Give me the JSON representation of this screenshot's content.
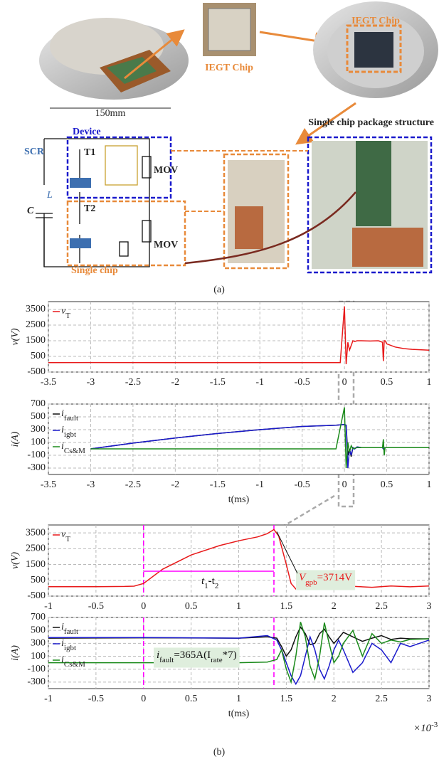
{
  "panel_a": {
    "scale": "150mm",
    "chip_label_1": "IEGT Chip",
    "chip_label_2": "IEGT Chip",
    "package": "Single chip package structure",
    "device": "Device",
    "scr": "SCR",
    "t1": "T1",
    "t2": "T2",
    "mov_1": "MOV",
    "mov_2": "MOV",
    "inductor": "L",
    "capacitor": "C",
    "single_chip": "Single chip",
    "caption": "(a)"
  },
  "panel_b": {
    "caption": "(b)"
  },
  "chart_data": [
    {
      "type": "line",
      "ylabel": "v(V)",
      "x": [
        -3.5,
        -3,
        -2,
        -1,
        -0.5,
        -0.05,
        0,
        0.02,
        0.04,
        0.06,
        0.08,
        0.1,
        0.12,
        0.15,
        0.2,
        0.3,
        0.4,
        0.45,
        0.46,
        0.47,
        0.48,
        0.5,
        0.6,
        0.7,
        0.8,
        1
      ],
      "series": [
        {
          "name": "v",
          "subscript": "T",
          "color": "#e8191a",
          "values": [
            100,
            110,
            100,
            100,
            100,
            100,
            3700,
            0,
            1400,
            900,
            1200,
            1500,
            1450,
            1500,
            1500,
            1480,
            1500,
            1400,
            200,
            1500,
            1500,
            1300,
            1100,
            1000,
            950,
            900
          ]
        }
      ],
      "xlim": [
        -3.5,
        1
      ],
      "xticks": [
        -3.5,
        -3,
        -2.5,
        -2,
        -1.5,
        -1,
        -0.5,
        0,
        0.5,
        1
      ],
      "ylim": [
        -500,
        4000
      ],
      "yticks": [
        -500,
        500,
        1500,
        2500,
        3500
      ],
      "grid": true
    },
    {
      "type": "line",
      "ylabel": "i(A)",
      "xlabel": "t(ms)",
      "x": [
        -3.5,
        -3,
        -2.5,
        -2,
        -1.5,
        -1,
        -0.5,
        -0.1,
        0,
        0.02,
        0.04,
        0.06,
        0.08,
        0.1,
        0.12,
        0.15,
        0.2,
        0.3,
        0.45,
        0.46,
        0.47,
        0.48,
        0.5,
        0.7,
        1
      ],
      "series": [
        {
          "name": "i",
          "subscript": "fault",
          "color": "#111111",
          "values": [
            null,
            0,
            90,
            170,
            240,
            300,
            350,
            370,
            380,
            370,
            -100,
            0,
            -120,
            20,
            0,
            30,
            20,
            20,
            20,
            0,
            20,
            20,
            20,
            20,
            20
          ]
        },
        {
          "name": "i",
          "subscript": "igbt",
          "color": "#1a1acc",
          "values": [
            null,
            0,
            90,
            170,
            240,
            300,
            350,
            370,
            380,
            370,
            -300,
            0,
            -100,
            20,
            0,
            30,
            20,
            20,
            20,
            0,
            20,
            20,
            20,
            20,
            20
          ]
        },
        {
          "name": "i",
          "subscript": "Cs&M",
          "color": "#1a8a1a",
          "values": [
            null,
            0,
            0,
            0,
            0,
            0,
            0,
            0,
            650,
            -300,
            100,
            -50,
            50,
            0,
            10,
            20,
            20,
            20,
            20,
            150,
            -100,
            20,
            20,
            20,
            20
          ]
        }
      ],
      "xlim": [
        -3.5,
        1
      ],
      "xticks": [
        -3.5,
        -3,
        -2.5,
        -2,
        -1.5,
        -1,
        -0.5,
        0,
        0.5,
        1
      ],
      "ylim": [
        -400,
        700
      ],
      "yticks": [
        -300,
        -100,
        100,
        300,
        500,
        700
      ],
      "grid": true
    },
    {
      "type": "line",
      "ylabel": "v(V)",
      "x": [
        -1,
        -0.5,
        -0.2,
        -0.1,
        0,
        0.2,
        0.5,
        0.8,
        1,
        1.2,
        1.3,
        1.37,
        1.42,
        1.5,
        1.55,
        1.6,
        1.7,
        1.8,
        1.9,
        2,
        2.2,
        2.4,
        2.6,
        2.8,
        3
      ],
      "series": [
        {
          "name": "v",
          "subscript": "T",
          "color": "#e8191a",
          "values": [
            100,
            100,
            110,
            130,
            300,
            1200,
            2100,
            2700,
            3000,
            3250,
            3450,
            3714,
            3300,
            1500,
            300,
            -50,
            100,
            -50,
            150,
            0,
            120,
            60,
            140,
            90,
            140
          ]
        }
      ],
      "markers": [
        0,
        1.37
      ],
      "annotations": [
        {
          "parts": [
            "V",
            "gpb",
            "=3714V"
          ],
          "color": "#e8191a"
        },
        {
          "parts": [
            "t",
            "1",
            "-t",
            "2"
          ],
          "color": "#111111"
        }
      ],
      "xlim": [
        -1,
        3
      ],
      "xticks": [
        -1,
        -0.5,
        0,
        0.5,
        1,
        1.5,
        2,
        2.5,
        3
      ],
      "ylim": [
        -500,
        4000
      ],
      "yticks": [
        -500,
        500,
        1500,
        2500,
        3500
      ],
      "grid": true
    },
    {
      "type": "line",
      "ylabel": "i(A)",
      "xlabel": "t(ms)",
      "x_multiplier": [
        "×10",
        "-3"
      ],
      "x": [
        -1,
        0,
        1,
        1.3,
        1.4,
        1.45,
        1.5,
        1.55,
        1.6,
        1.65,
        1.7,
        1.75,
        1.8,
        1.85,
        1.9,
        1.95,
        2,
        2.05,
        2.1,
        2.2,
        2.3,
        2.4,
        2.5,
        2.6,
        2.7,
        2.8,
        3
      ],
      "series": [
        {
          "name": "i",
          "subscript": "fault",
          "color": "#111111",
          "values": [
            380,
            385,
            380,
            400,
            380,
            250,
            100,
            200,
            400,
            550,
            450,
            280,
            300,
            450,
            520,
            400,
            300,
            380,
            470,
            400,
            330,
            380,
            420,
            360,
            380,
            370,
            370
          ]
        },
        {
          "name": "i",
          "subscript": "igbt",
          "color": "#1a1acc",
          "values": [
            390,
            390,
            380,
            420,
            350,
            200,
            0,
            -200,
            -330,
            -200,
            100,
            400,
            200,
            -100,
            -250,
            -50,
            200,
            350,
            200,
            -150,
            0,
            300,
            200,
            0,
            300,
            250,
            350
          ]
        },
        {
          "name": "i",
          "subscript": "Cs&M",
          "color": "#1a8a1a",
          "values": [
            0,
            0,
            0,
            10,
            50,
            200,
            -100,
            -300,
            100,
            630,
            400,
            -50,
            -250,
            100,
            620,
            300,
            0,
            100,
            300,
            500,
            100,
            450,
            300,
            350,
            320,
            360,
            370
          ]
        }
      ],
      "markers": [
        0,
        1.37
      ],
      "annotations": [
        {
          "parts": [
            "i",
            "fault",
            "=365A(I",
            "rate",
            "*7)"
          ],
          "color": "#111111"
        }
      ],
      "xlim": [
        -1,
        3
      ],
      "xticks": [
        -1,
        -0.5,
        0,
        0.5,
        1,
        1.5,
        2,
        2.5,
        3
      ],
      "ylim": [
        -400,
        700
      ],
      "yticks": [
        -300,
        -100,
        100,
        300,
        500,
        700
      ],
      "grid": true
    }
  ]
}
